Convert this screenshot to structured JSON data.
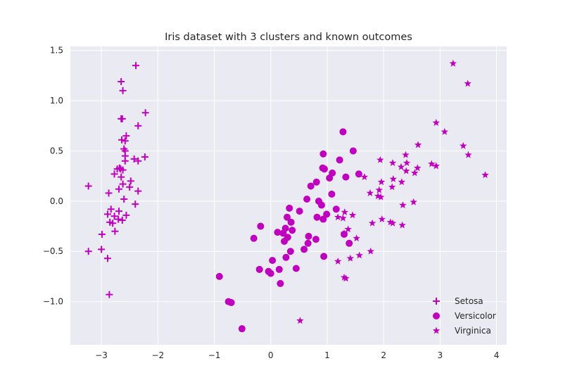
{
  "chart_data": {
    "type": "scatter",
    "title": "Iris dataset with 3 clusters and known outcomes",
    "xlabel": "",
    "ylabel": "",
    "xlim": [
      -3.55,
      4.18
    ],
    "ylim": [
      -1.43,
      1.54
    ],
    "xticks": [
      -3,
      -2,
      -1,
      0,
      1,
      2,
      3,
      4
    ],
    "yticks": [
      -1.0,
      -0.5,
      0.0,
      0.5,
      1.0,
      1.5
    ],
    "xtick_labels": [
      "−3",
      "−2",
      "−1",
      "0",
      "1",
      "2",
      "3",
      "4"
    ],
    "ytick_labels": [
      "−1.0",
      "−0.5",
      "0.0",
      "0.5",
      "1.0",
      "1.5"
    ],
    "grid": true,
    "background": "#eaeaf2",
    "marker_color": "#bf00bf",
    "legend_position": "lower-right",
    "series": [
      {
        "name": "Setosa",
        "marker": "plus",
        "points": [
          [
            -2.39,
            1.35
          ],
          [
            -2.65,
            1.19
          ],
          [
            -2.62,
            1.1
          ],
          [
            -2.65,
            0.82
          ],
          [
            -2.63,
            0.82
          ],
          [
            -2.22,
            0.88
          ],
          [
            -2.35,
            0.75
          ],
          [
            -2.56,
            0.65
          ],
          [
            -2.64,
            0.61
          ],
          [
            -2.58,
            0.6
          ],
          [
            -2.6,
            0.52
          ],
          [
            -2.58,
            0.5
          ],
          [
            -2.58,
            0.45
          ],
          [
            -2.42,
            0.42
          ],
          [
            -2.23,
            0.44
          ],
          [
            -2.35,
            0.4
          ],
          [
            -2.58,
            0.4
          ],
          [
            -2.68,
            0.33
          ],
          [
            -2.72,
            0.32
          ],
          [
            -2.66,
            0.32
          ],
          [
            -2.62,
            0.31
          ],
          [
            -2.77,
            0.27
          ],
          [
            -2.65,
            0.24
          ],
          [
            -2.48,
            0.2
          ],
          [
            -2.62,
            0.17
          ],
          [
            -2.5,
            0.14
          ],
          [
            -2.69,
            0.12
          ],
          [
            -3.23,
            0.15
          ],
          [
            -2.35,
            0.1
          ],
          [
            -2.87,
            0.08
          ],
          [
            -2.6,
            0.02
          ],
          [
            -2.4,
            -0.03
          ],
          [
            -2.83,
            -0.08
          ],
          [
            -2.69,
            -0.1
          ],
          [
            -2.89,
            -0.13
          ],
          [
            -2.56,
            -0.14
          ],
          [
            -2.77,
            -0.15
          ],
          [
            -2.7,
            -0.18
          ],
          [
            -2.63,
            -0.19
          ],
          [
            -2.85,
            -0.21
          ],
          [
            -2.8,
            -0.22
          ],
          [
            -2.76,
            -0.3
          ],
          [
            -2.99,
            -0.33
          ],
          [
            -3.23,
            -0.5
          ],
          [
            -3.0,
            -0.48
          ],
          [
            -2.89,
            -0.57
          ],
          [
            -2.86,
            -0.93
          ]
        ]
      },
      {
        "name": "Versicolor",
        "marker": "circle",
        "points": [
          [
            1.28,
            0.69
          ],
          [
            1.46,
            0.5
          ],
          [
            0.93,
            0.47
          ],
          [
            1.22,
            0.41
          ],
          [
            0.92,
            0.33
          ],
          [
            0.95,
            0.32
          ],
          [
            1.09,
            0.28
          ],
          [
            1.56,
            0.27
          ],
          [
            1.33,
            0.24
          ],
          [
            1.04,
            0.23
          ],
          [
            0.81,
            0.19
          ],
          [
            0.71,
            0.15
          ],
          [
            1.08,
            0.07
          ],
          [
            0.85,
            0.0
          ],
          [
            0.64,
            0.02
          ],
          [
            0.9,
            -0.04
          ],
          [
            0.33,
            -0.07
          ],
          [
            0.51,
            -0.1
          ],
          [
            1.16,
            -0.08
          ],
          [
            0.99,
            -0.13
          ],
          [
            0.29,
            -0.16
          ],
          [
            0.82,
            -0.16
          ],
          [
            0.93,
            -0.18
          ],
          [
            0.36,
            -0.21
          ],
          [
            -0.18,
            -0.25
          ],
          [
            0.26,
            -0.27
          ],
          [
            0.38,
            -0.29
          ],
          [
            0.12,
            -0.31
          ],
          [
            0.22,
            -0.32
          ],
          [
            0.67,
            -0.35
          ],
          [
            1.3,
            -0.33
          ],
          [
            0.3,
            -0.36
          ],
          [
            -0.3,
            -0.37
          ],
          [
            0.24,
            -0.4
          ],
          [
            0.8,
            -0.38
          ],
          [
            0.66,
            -0.42
          ],
          [
            1.39,
            -0.42
          ],
          [
            0.59,
            -0.48
          ],
          [
            0.35,
            -0.5
          ],
          [
            0.94,
            -0.55
          ],
          [
            0.27,
            -0.56
          ],
          [
            0.03,
            -0.59
          ],
          [
            -0.2,
            -0.68
          ],
          [
            0.15,
            -0.68
          ],
          [
            0.45,
            -0.67
          ],
          [
            -0.04,
            -0.7
          ],
          [
            0.0,
            -0.72
          ],
          [
            -0.91,
            -0.75
          ],
          [
            0.17,
            -0.82
          ],
          [
            -0.75,
            -1.0
          ],
          [
            -0.7,
            -1.01
          ],
          [
            -0.51,
            -1.27
          ]
        ]
      },
      {
        "name": "Virginica",
        "marker": "star",
        "points": [
          [
            3.23,
            1.37
          ],
          [
            3.49,
            1.17
          ],
          [
            2.93,
            0.78
          ],
          [
            3.08,
            0.69
          ],
          [
            2.61,
            0.56
          ],
          [
            3.41,
            0.55
          ],
          [
            2.39,
            0.46
          ],
          [
            3.5,
            0.46
          ],
          [
            1.94,
            0.41
          ],
          [
            2.16,
            0.38
          ],
          [
            2.41,
            0.38
          ],
          [
            2.85,
            0.37
          ],
          [
            2.31,
            0.34
          ],
          [
            2.93,
            0.35
          ],
          [
            2.6,
            0.33
          ],
          [
            2.4,
            0.3
          ],
          [
            2.55,
            0.28
          ],
          [
            3.8,
            0.26
          ],
          [
            1.66,
            0.24
          ],
          [
            2.17,
            0.22
          ],
          [
            1.96,
            0.19
          ],
          [
            2.32,
            0.19
          ],
          [
            1.92,
            0.11
          ],
          [
            2.15,
            0.14
          ],
          [
            1.76,
            0.08
          ],
          [
            1.9,
            0.05
          ],
          [
            1.95,
            0.04
          ],
          [
            2.53,
            -0.01
          ],
          [
            2.34,
            -0.04
          ],
          [
            1.31,
            -0.11
          ],
          [
            1.45,
            -0.14
          ],
          [
            1.19,
            -0.16
          ],
          [
            1.28,
            -0.17
          ],
          [
            1.97,
            -0.18
          ],
          [
            2.12,
            -0.21
          ],
          [
            2.16,
            -0.22
          ],
          [
            1.8,
            -0.22
          ],
          [
            2.33,
            -0.24
          ],
          [
            1.37,
            -0.28
          ],
          [
            1.3,
            -0.32
          ],
          [
            1.52,
            -0.37
          ],
          [
            1.77,
            -0.5
          ],
          [
            1.57,
            -0.54
          ],
          [
            1.41,
            -0.57
          ],
          [
            1.19,
            -0.6
          ],
          [
            1.3,
            -0.76
          ],
          [
            1.33,
            -0.77
          ],
          [
            0.52,
            -1.19
          ]
        ]
      }
    ]
  }
}
